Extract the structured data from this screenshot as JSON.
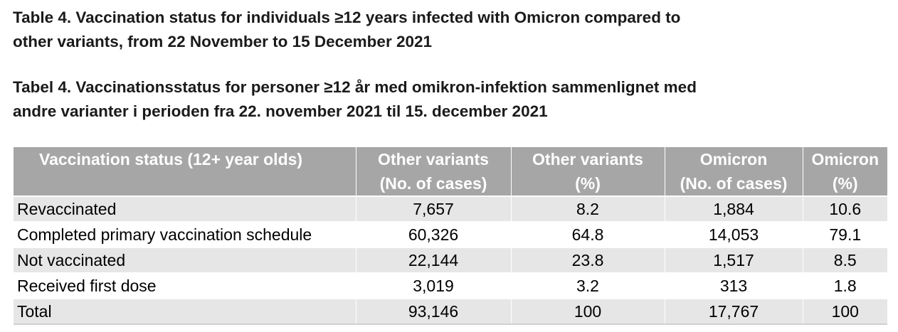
{
  "captions": {
    "english": "Table 4. Vaccination status for individuals ≥12 years infected with Omicron compared to\nother variants, from 22 November to 15 December 2021",
    "danish": "Tabel 4. Vaccinationsstatus for personer ≥12 år med omikron-infektion sammenlignet med\nandre varianter i perioden fra 22. november 2021 til 15. december 2021"
  },
  "table": {
    "headers": [
      {
        "line1": "Vaccination status (12+ year olds)",
        "line2": ""
      },
      {
        "line1": "Other variants",
        "line2": "(No. of cases)"
      },
      {
        "line1": "Other variants",
        "line2": "(%)"
      },
      {
        "line1": "Omicron",
        "line2": "(No. of cases)"
      },
      {
        "line1": "Omicron",
        "line2": "(%)"
      }
    ],
    "rows": [
      {
        "status": "Revaccinated",
        "other_cases": "7,657",
        "other_pct": "8.2",
        "omicron_cases": "1,884",
        "omicron_pct": "10.6"
      },
      {
        "status": "Completed primary vaccination schedule",
        "other_cases": "60,326",
        "other_pct": "64.8",
        "omicron_cases": "14,053",
        "omicron_pct": "79.1"
      },
      {
        "status": "Not vaccinated",
        "other_cases": "22,144",
        "other_pct": "23.8",
        "omicron_cases": "1,517",
        "omicron_pct": "8.5"
      },
      {
        "status": "Received first dose",
        "other_cases": "3,019",
        "other_pct": "3.2",
        "omicron_cases": "313",
        "omicron_pct": "1.8"
      },
      {
        "status": "Total",
        "other_cases": "93,146",
        "other_pct": "100",
        "omicron_cases": "17,767",
        "omicron_pct": "100"
      }
    ]
  },
  "colors": {
    "header_background": "#a6a6a6",
    "header_text": "#ffffff",
    "row_shaded": "#e6e6e6",
    "row_plain": "#ffffff"
  }
}
